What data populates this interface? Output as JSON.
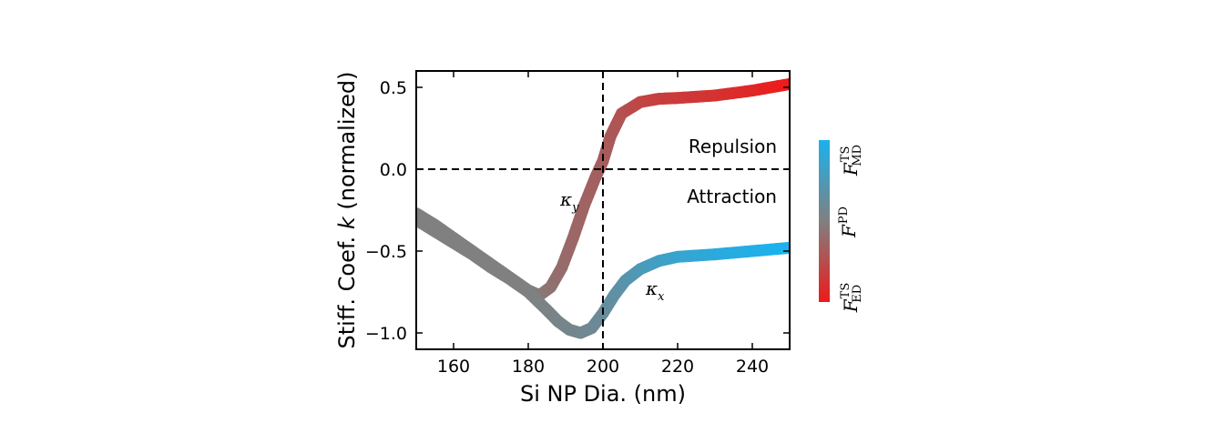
{
  "chart_data": {
    "type": "line",
    "xlabel": "Si NP Dia. (nm)",
    "ylabel_prefix": "Stiff. Coef.",
    "ylabel_var": "k",
    "ylabel_suffix": "(normalized)",
    "xlim": [
      150,
      250
    ],
    "ylim": [
      -1.1,
      0.6
    ],
    "xticks": [
      160,
      180,
      200,
      220,
      240
    ],
    "xtick_labels": [
      "160",
      "180",
      "200",
      "220",
      "240"
    ],
    "yticks": [
      0.5,
      0.0,
      -0.5,
      -1.0
    ],
    "ytick_labels": [
      "0.5",
      "0.0",
      "−0.5",
      "−1.0"
    ],
    "reference_lines": {
      "horizontal_y": 0.0,
      "vertical_x": 200
    },
    "annotations": {
      "upper": "Repulsion",
      "lower": "Attraction"
    },
    "series": [
      {
        "label_symbol": "κ",
        "label_sub": "y",
        "x": [
          150,
          155,
          160,
          165,
          170,
          175,
          180,
          183,
          186,
          189,
          192,
          195,
          198,
          200,
          202,
          205,
          210,
          215,
          220,
          230,
          240,
          250
        ],
        "y": [
          -0.27,
          -0.34,
          -0.42,
          -0.5,
          -0.58,
          -0.66,
          -0.74,
          -0.77,
          -0.72,
          -0.6,
          -0.42,
          -0.22,
          -0.05,
          0.05,
          0.2,
          0.34,
          0.41,
          0.43,
          0.435,
          0.45,
          0.48,
          0.52
        ],
        "color_value": [
          0.5,
          0.5,
          0.5,
          0.5,
          0.5,
          0.5,
          0.5,
          0.52,
          0.56,
          0.6,
          0.62,
          0.64,
          0.66,
          0.67,
          0.69,
          0.72,
          0.78,
          0.82,
          0.84,
          0.88,
          0.93,
          1.0
        ]
      },
      {
        "label_symbol": "κ",
        "label_sub": "x",
        "x": [
          150,
          155,
          160,
          165,
          170,
          175,
          180,
          185,
          188,
          191,
          194,
          197,
          200,
          203,
          206,
          210,
          215,
          220,
          230,
          240,
          250
        ],
        "y": [
          -0.31,
          -0.38,
          -0.45,
          -0.52,
          -0.6,
          -0.67,
          -0.75,
          -0.86,
          -0.93,
          -0.98,
          -1.0,
          -0.97,
          -0.88,
          -0.77,
          -0.68,
          -0.61,
          -0.56,
          -0.535,
          -0.52,
          -0.5,
          -0.48
        ],
        "color_value": [
          0.5,
          0.5,
          0.5,
          0.5,
          0.5,
          0.5,
          0.5,
          0.48,
          0.46,
          0.45,
          0.44,
          0.42,
          0.39,
          0.35,
          0.31,
          0.26,
          0.2,
          0.15,
          0.09,
          0.04,
          0.0
        ]
      }
    ],
    "colorbar": {
      "top_label": {
        "base": "F",
        "sup": "TS",
        "sub": "MD"
      },
      "mid_label": {
        "base": "F",
        "sup": "PD",
        "sub": ""
      },
      "bottom_label": {
        "base": "F",
        "sup": "TS",
        "sub": "ED"
      },
      "colors": [
        "#1ab2ee",
        "#808080",
        "#ee1a1a"
      ]
    }
  }
}
